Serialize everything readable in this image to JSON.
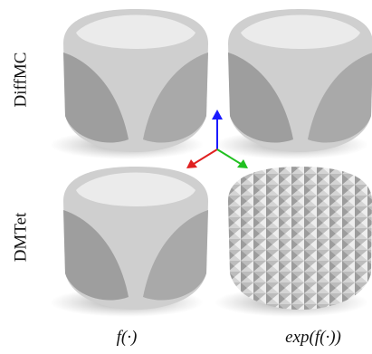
{
  "rows": [
    "DiffMC",
    "DMTet"
  ],
  "columns": [
    "f(·)",
    "exp(f(·))"
  ]
}
